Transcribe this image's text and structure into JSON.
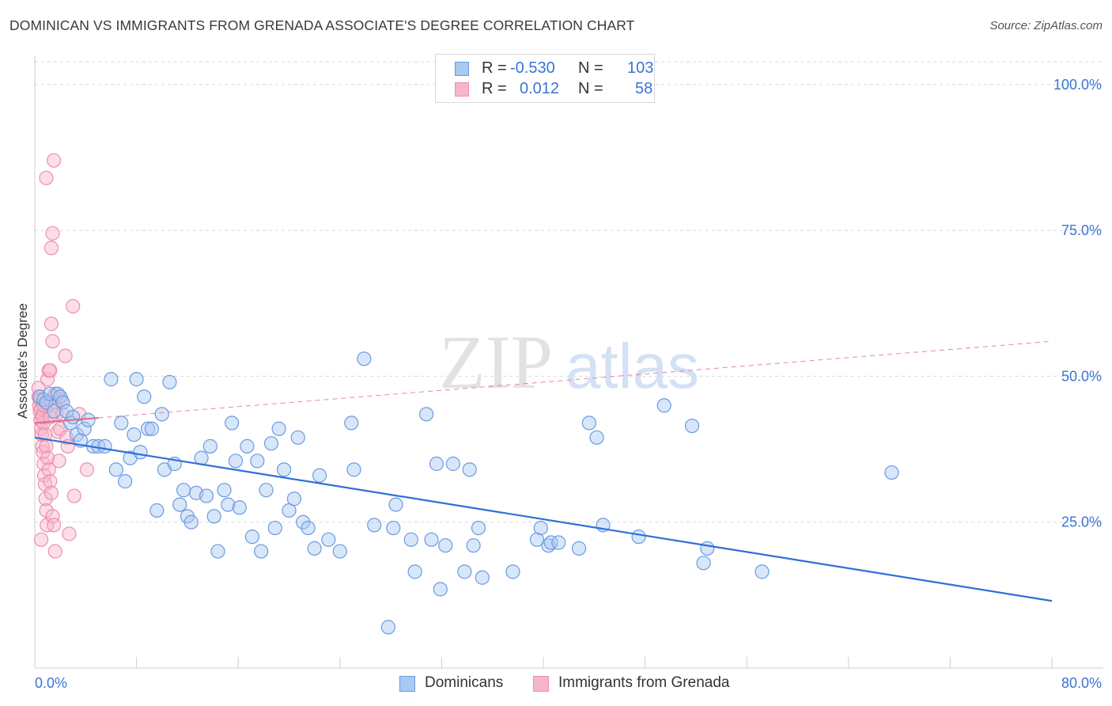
{
  "header": {
    "title": "DOMINICAN VS IMMIGRANTS FROM GRENADA ASSOCIATE'S DEGREE CORRELATION CHART",
    "source": "Source: ZipAtlas.com"
  },
  "legend_box": {
    "rows": [
      {
        "r_label": "R =",
        "r_value": "-0.530",
        "n_label": "N =",
        "n_value": "103"
      },
      {
        "r_label": "R =",
        "r_value": "0.012",
        "n_label": "N =",
        "n_value": "58"
      }
    ]
  },
  "bottom_legend": {
    "items": [
      "Dominicans",
      "Immigrants from Grenada"
    ]
  },
  "watermark": {
    "zip": "ZIP",
    "atlas": "atlas"
  },
  "colors": {
    "blue_fill": "#a9c8f2",
    "blue_stroke": "#6a9be0",
    "blue_line": "#2f6fd6",
    "pink_fill": "#f6b6c9",
    "pink_stroke": "#ee8fad",
    "pink_line": "#e0688e",
    "axis_text": "#3a74d4",
    "grid": "#d9d9d9"
  },
  "chart_data": {
    "type": "scatter",
    "title": "DOMINICAN VS IMMIGRANTS FROM GRENADA ASSOCIATE'S DEGREE CORRELATION CHART",
    "xlabel": "",
    "ylabel": "Associate's Degree",
    "xlim": [
      0,
      80
    ],
    "ylim": [
      0,
      105
    ],
    "x_tick_labels": [
      "0.0%",
      "80.0%"
    ],
    "y_ticks": [
      25,
      50,
      75,
      100
    ],
    "y_tick_labels": [
      "25.0%",
      "50.0%",
      "75.0%",
      "100.0%"
    ],
    "grid": "horizontal dashed",
    "legend_position": "top-center",
    "series": [
      {
        "name": "Dominicans",
        "r": -0.53,
        "n": 103,
        "trend": {
          "x": [
            0,
            80
          ],
          "y": [
            39.5,
            11.5
          ],
          "style": "solid"
        },
        "points": [
          [
            0.4,
            46.5
          ],
          [
            0.7,
            46
          ],
          [
            0.9,
            45.5
          ],
          [
            1.2,
            47
          ],
          [
            1.5,
            44
          ],
          [
            1.8,
            47
          ],
          [
            2.0,
            46.5
          ],
          [
            2.2,
            45.5
          ],
          [
            2.5,
            44
          ],
          [
            2.8,
            42
          ],
          [
            3.0,
            43
          ],
          [
            3.3,
            40
          ],
          [
            3.6,
            39
          ],
          [
            3.9,
            41
          ],
          [
            4.2,
            42.5
          ],
          [
            4.6,
            38
          ],
          [
            5.0,
            38
          ],
          [
            5.5,
            38
          ],
          [
            6.0,
            49.5
          ],
          [
            6.4,
            34
          ],
          [
            6.8,
            42
          ],
          [
            7.1,
            32
          ],
          [
            7.5,
            36
          ],
          [
            7.8,
            40
          ],
          [
            8.0,
            49.5
          ],
          [
            8.3,
            37
          ],
          [
            8.6,
            46.5
          ],
          [
            8.9,
            41
          ],
          [
            9.2,
            41
          ],
          [
            9.6,
            27
          ],
          [
            10.0,
            43.5
          ],
          [
            10.2,
            34
          ],
          [
            10.6,
            49
          ],
          [
            11.0,
            35
          ],
          [
            11.4,
            28
          ],
          [
            11.7,
            30.5
          ],
          [
            12.0,
            26
          ],
          [
            12.3,
            25
          ],
          [
            12.7,
            30
          ],
          [
            13.1,
            36
          ],
          [
            13.5,
            29.5
          ],
          [
            13.8,
            38
          ],
          [
            14.1,
            26
          ],
          [
            14.4,
            20
          ],
          [
            14.9,
            30.5
          ],
          [
            15.2,
            28
          ],
          [
            15.5,
            42
          ],
          [
            15.8,
            35.5
          ],
          [
            16.1,
            27.5
          ],
          [
            16.7,
            38
          ],
          [
            17.1,
            22.5
          ],
          [
            17.5,
            35.5
          ],
          [
            17.8,
            20
          ],
          [
            18.2,
            30.5
          ],
          [
            18.6,
            38.5
          ],
          [
            18.9,
            24
          ],
          [
            19.2,
            41
          ],
          [
            19.6,
            34
          ],
          [
            20.0,
            27
          ],
          [
            20.4,
            29
          ],
          [
            20.7,
            39.5
          ],
          [
            21.1,
            25
          ],
          [
            21.5,
            24
          ],
          [
            22.0,
            20.5
          ],
          [
            22.4,
            33
          ],
          [
            23.1,
            22
          ],
          [
            24.0,
            20
          ],
          [
            24.9,
            42
          ],
          [
            25.1,
            34
          ],
          [
            25.9,
            53
          ],
          [
            26.7,
            24.5
          ],
          [
            28.2,
            24
          ],
          [
            28.4,
            28
          ],
          [
            29.6,
            22
          ],
          [
            29.9,
            16.5
          ],
          [
            30.8,
            43.5
          ],
          [
            31.2,
            22
          ],
          [
            31.6,
            35
          ],
          [
            31.9,
            13.5
          ],
          [
            32.3,
            21
          ],
          [
            32.9,
            35
          ],
          [
            33.8,
            16.5
          ],
          [
            34.2,
            34
          ],
          [
            34.5,
            21
          ],
          [
            34.9,
            24
          ],
          [
            35.2,
            15.5
          ],
          [
            37.6,
            16.5
          ],
          [
            39.5,
            22
          ],
          [
            39.8,
            24
          ],
          [
            40.4,
            21
          ],
          [
            40.6,
            21.5
          ],
          [
            41.2,
            21.5
          ],
          [
            42.8,
            20.5
          ],
          [
            43.6,
            42
          ],
          [
            44.2,
            39.5
          ],
          [
            44.7,
            24.5
          ],
          [
            47.5,
            22.5
          ],
          [
            49.5,
            45
          ],
          [
            51.7,
            41.5
          ],
          [
            52.6,
            18
          ],
          [
            52.9,
            20.5
          ],
          [
            57.2,
            16.5
          ],
          [
            67.4,
            33.5
          ],
          [
            27.8,
            7
          ]
        ]
      },
      {
        "name": "Immigrants from Grenada",
        "r": 0.012,
        "n": 58,
        "trend": {
          "x": [
            0,
            80
          ],
          "y": [
            42,
            56
          ],
          "solid_until_x": 5,
          "style": "dashed"
        },
        "points": [
          [
            0.3,
            46.5
          ],
          [
            0.35,
            45
          ],
          [
            0.4,
            44
          ],
          [
            0.45,
            42.5
          ],
          [
            0.5,
            41
          ],
          [
            0.55,
            40
          ],
          [
            0.6,
            38
          ],
          [
            0.65,
            37
          ],
          [
            0.7,
            35
          ],
          [
            0.75,
            33
          ],
          [
            0.8,
            31.5
          ],
          [
            0.85,
            29
          ],
          [
            0.9,
            27
          ],
          [
            0.95,
            24.5
          ],
          [
            0.5,
            22
          ],
          [
            0.3,
            48
          ],
          [
            0.4,
            46
          ],
          [
            0.6,
            43.5
          ],
          [
            0.7,
            42
          ],
          [
            0.8,
            40
          ],
          [
            0.9,
            38
          ],
          [
            1.0,
            36
          ],
          [
            1.1,
            34
          ],
          [
            1.2,
            32
          ],
          [
            1.3,
            30
          ],
          [
            1.4,
            26
          ],
          [
            1.5,
            24.5
          ],
          [
            1.6,
            20
          ],
          [
            1.0,
            49.5
          ],
          [
            1.1,
            51
          ],
          [
            1.2,
            51
          ],
          [
            1.3,
            59
          ],
          [
            1.4,
            56
          ],
          [
            1.5,
            46.5
          ],
          [
            1.6,
            47
          ],
          [
            1.7,
            43.5
          ],
          [
            1.8,
            40.5
          ],
          [
            1.9,
            35.5
          ],
          [
            2.0,
            41
          ],
          [
            2.2,
            43.5
          ],
          [
            2.4,
            53.5
          ],
          [
            2.5,
            39.5
          ],
          [
            2.6,
            38
          ],
          [
            2.7,
            23
          ],
          [
            3.0,
            62
          ],
          [
            3.1,
            29.5
          ],
          [
            3.5,
            43.5
          ],
          [
            4.1,
            34
          ],
          [
            1.3,
            72
          ],
          [
            1.4,
            74.5
          ],
          [
            1.5,
            87
          ],
          [
            0.9,
            84
          ],
          [
            0.5,
            44.5
          ],
          [
            0.6,
            43
          ],
          [
            0.7,
            45
          ],
          [
            1.2,
            43
          ],
          [
            1.6,
            45.5
          ],
          [
            2.1,
            46
          ]
        ]
      }
    ]
  }
}
